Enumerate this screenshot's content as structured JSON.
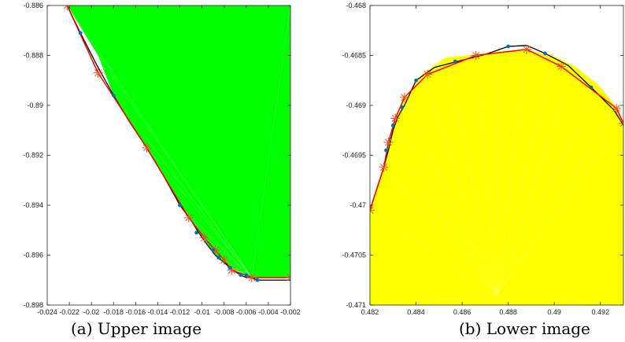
{
  "chart_data": [
    {
      "type": "scatter",
      "caption": "(a) Upper image",
      "xlim": [
        -0.024,
        -0.002
      ],
      "ylim": [
        -0.898,
        -0.886
      ],
      "xticks": [
        "-0.024",
        "-0.022",
        "-0.02",
        "-0.018",
        "-0.016",
        "-0.014",
        "-0.012",
        "-0.01",
        "-0.008",
        "-0.006",
        "-0.004",
        "-0.002"
      ],
      "yticks": [
        "-0.898",
        "-0.896",
        "-0.894",
        "-0.892",
        "-0.89",
        "-0.888",
        "-0.886"
      ],
      "fill_color": "#00ff00",
      "fill_region": [
        [
          -0.0222,
          -0.886
        ],
        [
          -0.0194,
          -0.888
        ],
        [
          -0.018,
          -0.8896
        ],
        [
          -0.015,
          -0.8917
        ],
        [
          -0.012,
          -0.894
        ],
        [
          -0.011,
          -0.8946
        ],
        [
          -0.01,
          -0.8952
        ],
        [
          -0.009,
          -0.8959
        ],
        [
          -0.008,
          -0.8963
        ],
        [
          -0.007,
          -0.8966
        ],
        [
          -0.006,
          -0.8968
        ],
        [
          -0.0055,
          -0.8969
        ],
        [
          -0.005,
          -0.8969
        ],
        [
          -0.002,
          -0.8969
        ],
        [
          -0.002,
          -0.886
        ]
      ],
      "series": [
        {
          "color": "#000000",
          "style": "line",
          "x": [
            -0.0222,
            -0.021,
            -0.0195,
            -0.018,
            -0.0165,
            -0.015,
            -0.0135,
            -0.012,
            -0.011,
            -0.0103,
            -0.0095,
            -0.0088,
            -0.008,
            -0.0072,
            -0.0065,
            -0.006,
            -0.0055,
            -0.005,
            -0.002
          ],
          "y": [
            -0.886,
            -0.8871,
            -0.8884,
            -0.8896,
            -0.8907,
            -0.8917,
            -0.8928,
            -0.894,
            -0.8946,
            -0.8951,
            -0.8956,
            -0.896,
            -0.8963,
            -0.8966,
            -0.8968,
            -0.8969,
            -0.8969,
            -0.897,
            -0.897
          ]
        },
        {
          "color": "#ff0000",
          "style": "line-star",
          "x": [
            -0.0222,
            -0.0194,
            -0.015,
            -0.0112,
            -0.0098,
            -0.0088,
            -0.008,
            -0.0073,
            -0.0055,
            -0.002
          ],
          "y": [
            -0.886,
            -0.8887,
            -0.8917,
            -0.8945,
            -0.8953,
            -0.8958,
            -0.8962,
            -0.8966,
            -0.8969,
            -0.8969
          ]
        },
        {
          "color": "#0072bd",
          "style": "dots",
          "x": [
            -0.021,
            -0.018,
            -0.012,
            -0.0105,
            -0.009,
            -0.0085,
            -0.0075,
            -0.0065,
            -0.006,
            -0.005
          ],
          "y": [
            -0.8871,
            -0.8896,
            -0.894,
            -0.8951,
            -0.8958,
            -0.8961,
            -0.8965,
            -0.8968,
            -0.8968,
            -0.897
          ]
        }
      ]
    },
    {
      "type": "scatter",
      "caption": "(b) Lower image",
      "xlim": [
        0.482,
        0.493
      ],
      "ylim": [
        -0.471,
        -0.468
      ],
      "xticks": [
        "0.482",
        "0.484",
        "0.486",
        "0.488",
        "0.49",
        "0.492"
      ],
      "yticks": [
        "-0.471",
        "-0.4705",
        "-0.47",
        "-0.4695",
        "-0.469",
        "-0.4685",
        "-0.468"
      ],
      "fill_color": "#ffff00",
      "fill_region": [
        [
          0.482,
          -0.471
        ],
        [
          0.482,
          -0.47005
        ],
        [
          0.4826,
          -0.46962
        ],
        [
          0.4828,
          -0.46937
        ],
        [
          0.4831,
          -0.46913
        ],
        [
          0.4835,
          -0.46892
        ],
        [
          0.4843,
          -0.46868
        ],
        [
          0.4853,
          -0.46852
        ],
        [
          0.4866,
          -0.46849
        ],
        [
          0.4875,
          -0.46846
        ],
        [
          0.4888,
          -0.46844
        ],
        [
          0.49,
          -0.46851
        ],
        [
          0.4909,
          -0.46861
        ],
        [
          0.4919,
          -0.46879
        ],
        [
          0.4927,
          -0.46902
        ],
        [
          0.493,
          -0.46918
        ],
        [
          0.493,
          -0.471
        ]
      ],
      "series": [
        {
          "color": "#000000",
          "style": "line",
          "x": [
            0.482,
            0.4826,
            0.4828,
            0.483,
            0.4832,
            0.4835,
            0.484,
            0.4848,
            0.4858,
            0.487,
            0.488,
            0.4888,
            0.4896,
            0.4906,
            0.4916,
            0.4926,
            0.493
          ],
          "y": [
            -0.47005,
            -0.46962,
            -0.46945,
            -0.46925,
            -0.46912,
            -0.469,
            -0.46875,
            -0.46862,
            -0.46856,
            -0.46849,
            -0.46841,
            -0.4684,
            -0.46848,
            -0.4686,
            -0.46882,
            -0.46905,
            -0.4692
          ]
        },
        {
          "color": "#ff0000",
          "style": "line-star",
          "x": [
            0.482,
            0.4826,
            0.4828,
            0.4831,
            0.4835,
            0.4845,
            0.4866,
            0.4888,
            0.4903,
            0.4927,
            0.493
          ],
          "y": [
            -0.47005,
            -0.46962,
            -0.46937,
            -0.46913,
            -0.46892,
            -0.46869,
            -0.4685,
            -0.46844,
            -0.46861,
            -0.46903,
            -0.46918
          ]
        },
        {
          "color": "#0072bd",
          "style": "dots",
          "x": [
            0.4827,
            0.483,
            0.4834,
            0.484,
            0.4857,
            0.488,
            0.4896,
            0.4916
          ],
          "y": [
            -0.46945,
            -0.4692,
            -0.46902,
            -0.46875,
            -0.46856,
            -0.46841,
            -0.46848,
            -0.46882
          ]
        }
      ]
    }
  ]
}
